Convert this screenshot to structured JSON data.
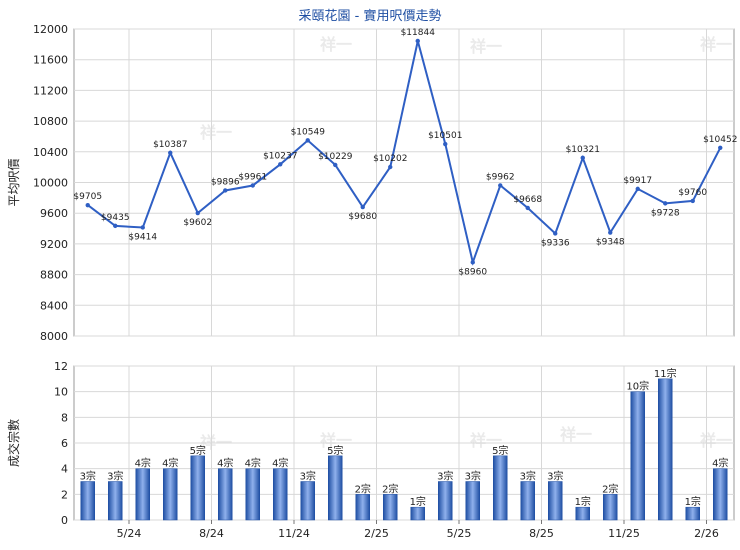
{
  "title": "采頤花園 - 實用呎價走勢",
  "watermark": "祥一",
  "colors": {
    "line": "#2f5fc4",
    "bar_dark": "#1f4fa3",
    "bar_light": "#8fb0ec",
    "grid": "#d8d8d8",
    "title": "#1f4fa3"
  },
  "chart_data": [
    {
      "type": "line",
      "ylabel": "平均呎價",
      "ylim": [
        8000,
        12000
      ],
      "yticks": [
        8000,
        8400,
        8800,
        9200,
        9600,
        10000,
        10400,
        10800,
        11200,
        11600,
        12000
      ],
      "grid": true,
      "values": [
        9705,
        9435,
        9414,
        10387,
        9602,
        9896,
        9961,
        10237,
        10549,
        10229,
        9680,
        10202,
        11844,
        10501,
        8960,
        9962,
        9668,
        9336,
        10321,
        9348,
        9917,
        9728,
        9760,
        10452
      ],
      "labels": [
        "$9705",
        "$9435",
        "$9414",
        "$10387",
        "$9602",
        "$9896",
        "$9961",
        "$10237",
        "$10549",
        "$10229",
        "$9680",
        "$10202",
        "$11844",
        "$10501",
        "$8960",
        "$9962",
        "$9668",
        "$9336",
        "$10321",
        "$9348",
        "$9917",
        "$9728",
        "$9760",
        "$10452"
      ]
    },
    {
      "type": "bar",
      "ylabel": "成交宗數",
      "ylim": [
        0,
        12
      ],
      "yticks": [
        0,
        2,
        4,
        6,
        8,
        10,
        12
      ],
      "grid": true,
      "values": [
        3,
        3,
        4,
        4,
        5,
        4,
        4,
        4,
        3,
        5,
        2,
        2,
        1,
        3,
        3,
        5,
        3,
        3,
        1,
        2,
        10,
        11,
        1,
        4
      ],
      "labels": [
        "3宗",
        "3宗",
        "4宗",
        "4宗",
        "5宗",
        "4宗",
        "4宗",
        "4宗",
        "3宗",
        "5宗",
        "2宗",
        "2宗",
        "1宗",
        "3宗",
        "3宗",
        "5宗",
        "3宗",
        "3宗",
        "1宗",
        "2宗",
        "10宗",
        "11宗",
        "1宗",
        "4宗"
      ],
      "xtick_labels": [
        "5/24",
        "8/24",
        "11/24",
        "2/25",
        "5/25",
        "8/25",
        "11/25",
        "2/26"
      ],
      "xtick_after_index": [
        1,
        4,
        7,
        10,
        13,
        16,
        19,
        22
      ]
    }
  ]
}
